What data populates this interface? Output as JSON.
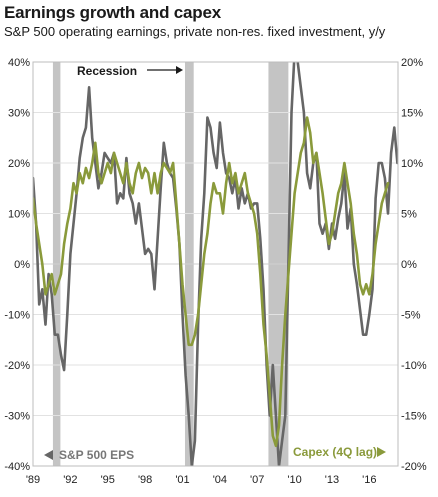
{
  "chart_data": {
    "type": "line",
    "title": "Earnings growth and capex",
    "subtitle": "S&P 500 operating earnings, private non-res. fixed investment, y/y",
    "x_ticks": [
      "'89",
      "'92",
      "'95",
      "'98",
      "'01",
      "'04",
      "'07",
      "'10",
      "'13",
      "'16"
    ],
    "x_range": [
      1989,
      2018.3
    ],
    "left_axis": {
      "range": [
        -40,
        40
      ],
      "ticks": [
        "-40%",
        "-30%",
        "-20%",
        "-10%",
        "0%",
        "10%",
        "20%",
        "30%",
        "40%"
      ]
    },
    "right_axis": {
      "range": [
        -20,
        20
      ],
      "ticks": [
        "-20%",
        "-15%",
        "-10%",
        "-5%",
        "0%",
        "5%",
        "10%",
        "15%",
        "20%"
      ]
    },
    "recessions": [
      [
        1990.6,
        1991.2
      ],
      [
        2001.2,
        2001.9
      ],
      [
        2007.9,
        2009.5
      ]
    ],
    "recession_label": "Recession",
    "grid": true,
    "series": [
      {
        "name": "S&P 500 EPS",
        "axis": "left",
        "color": "#666666",
        "points": [
          [
            1989.0,
            17
          ],
          [
            1989.25,
            8
          ],
          [
            1989.5,
            -8
          ],
          [
            1989.75,
            -5
          ],
          [
            1990.0,
            -12
          ],
          [
            1990.25,
            -2
          ],
          [
            1990.5,
            -6
          ],
          [
            1990.75,
            -14
          ],
          [
            1991.0,
            -14
          ],
          [
            1991.25,
            -18
          ],
          [
            1991.5,
            -21
          ],
          [
            1991.75,
            -10
          ],
          [
            1992.0,
            2
          ],
          [
            1992.25,
            8
          ],
          [
            1992.5,
            14
          ],
          [
            1992.75,
            21
          ],
          [
            1993.0,
            25
          ],
          [
            1993.25,
            27
          ],
          [
            1993.5,
            35
          ],
          [
            1993.75,
            25
          ],
          [
            1994.0,
            20
          ],
          [
            1994.25,
            15
          ],
          [
            1994.5,
            18
          ],
          [
            1994.75,
            22
          ],
          [
            1995.0,
            21
          ],
          [
            1995.25,
            20
          ],
          [
            1995.5,
            22
          ],
          [
            1995.75,
            12
          ],
          [
            1996.0,
            14
          ],
          [
            1996.25,
            13
          ],
          [
            1996.5,
            21
          ],
          [
            1996.75,
            14
          ],
          [
            1997.0,
            12
          ],
          [
            1997.25,
            8
          ],
          [
            1997.5,
            12
          ],
          [
            1997.75,
            7
          ],
          [
            1998.0,
            2
          ],
          [
            1998.25,
            3
          ],
          [
            1998.5,
            2
          ],
          [
            1998.75,
            -5
          ],
          [
            1999.0,
            5
          ],
          [
            1999.25,
            15
          ],
          [
            1999.5,
            24
          ],
          [
            1999.75,
            20
          ],
          [
            2000.0,
            18
          ],
          [
            2000.25,
            17
          ],
          [
            2000.5,
            11
          ],
          [
            2000.75,
            4
          ],
          [
            2001.0,
            -10
          ],
          [
            2001.25,
            -22
          ],
          [
            2001.5,
            -30
          ],
          [
            2001.75,
            -40
          ],
          [
            2002.0,
            -35
          ],
          [
            2002.25,
            -12
          ],
          [
            2002.5,
            5
          ],
          [
            2002.75,
            14
          ],
          [
            2003.0,
            29
          ],
          [
            2003.25,
            27
          ],
          [
            2003.5,
            22
          ],
          [
            2003.75,
            19
          ],
          [
            2004.0,
            28
          ],
          [
            2004.25,
            22
          ],
          [
            2004.5,
            18
          ],
          [
            2004.75,
            17
          ],
          [
            2005.0,
            14
          ],
          [
            2005.25,
            17
          ],
          [
            2005.5,
            11
          ],
          [
            2005.75,
            15
          ],
          [
            2006.0,
            12
          ],
          [
            2006.25,
            14
          ],
          [
            2006.5,
            11
          ],
          [
            2006.75,
            12
          ],
          [
            2007.0,
            12
          ],
          [
            2007.25,
            5
          ],
          [
            2007.5,
            -5
          ],
          [
            2007.75,
            -20
          ],
          [
            2008.0,
            -30
          ],
          [
            2008.25,
            -20
          ],
          [
            2008.5,
            -30
          ],
          [
            2008.75,
            -40
          ],
          [
            2009.0,
            -35
          ],
          [
            2009.25,
            -30
          ],
          [
            2009.5,
            0
          ],
          [
            2009.75,
            30
          ],
          [
            2010.0,
            42
          ],
          [
            2010.25,
            40
          ],
          [
            2010.5,
            35
          ],
          [
            2010.75,
            30
          ],
          [
            2011.0,
            18
          ],
          [
            2011.25,
            15
          ],
          [
            2011.5,
            20
          ],
          [
            2011.75,
            22
          ],
          [
            2012.0,
            8
          ],
          [
            2012.25,
            6
          ],
          [
            2012.5,
            8
          ],
          [
            2012.75,
            3
          ],
          [
            2013.0,
            8
          ],
          [
            2013.25,
            5
          ],
          [
            2013.5,
            9
          ],
          [
            2013.75,
            12
          ],
          [
            2014.0,
            18
          ],
          [
            2014.25,
            7
          ],
          [
            2014.5,
            11
          ],
          [
            2014.75,
            0
          ],
          [
            2015.0,
            -4
          ],
          [
            2015.25,
            -9
          ],
          [
            2015.5,
            -14
          ],
          [
            2015.75,
            -14
          ],
          [
            2016.0,
            -10
          ],
          [
            2016.25,
            -5
          ],
          [
            2016.5,
            13
          ],
          [
            2016.75,
            20
          ],
          [
            2017.0,
            20
          ],
          [
            2017.25,
            17
          ],
          [
            2017.5,
            10
          ],
          [
            2017.75,
            22
          ],
          [
            2018.0,
            27
          ],
          [
            2018.25,
            20
          ]
        ]
      },
      {
        "name": "Capex (4Q lag)",
        "axis": "right",
        "color": "#8a9a3b",
        "points": [
          [
            1989.0,
            6.5
          ],
          [
            1989.25,
            4
          ],
          [
            1989.5,
            2
          ],
          [
            1989.75,
            0
          ],
          [
            1990.0,
            -3
          ],
          [
            1990.25,
            -2
          ],
          [
            1990.5,
            -1
          ],
          [
            1990.75,
            -3
          ],
          [
            1991.0,
            -2
          ],
          [
            1991.25,
            -1
          ],
          [
            1991.5,
            2
          ],
          [
            1991.75,
            4
          ],
          [
            1992.0,
            5.5
          ],
          [
            1992.25,
            8
          ],
          [
            1992.5,
            7
          ],
          [
            1992.75,
            9
          ],
          [
            1993.0,
            8
          ],
          [
            1993.25,
            9.5
          ],
          [
            1993.5,
            8.5
          ],
          [
            1993.75,
            10
          ],
          [
            1994.0,
            12
          ],
          [
            1994.25,
            9
          ],
          [
            1994.5,
            8
          ],
          [
            1994.75,
            9
          ],
          [
            1995.0,
            10
          ],
          [
            1995.25,
            9
          ],
          [
            1995.5,
            11
          ],
          [
            1995.75,
            10
          ],
          [
            1996.0,
            9
          ],
          [
            1996.25,
            8
          ],
          [
            1996.5,
            10
          ],
          [
            1996.75,
            8
          ],
          [
            1997.0,
            7
          ],
          [
            1997.25,
            9
          ],
          [
            1997.5,
            10
          ],
          [
            1997.75,
            8.5
          ],
          [
            1998.0,
            9.5
          ],
          [
            1998.25,
            9
          ],
          [
            1998.5,
            7
          ],
          [
            1998.75,
            9
          ],
          [
            1999.0,
            7
          ],
          [
            1999.25,
            9
          ],
          [
            1999.5,
            10
          ],
          [
            1999.75,
            9.5
          ],
          [
            2000.0,
            9
          ],
          [
            2000.25,
            10
          ],
          [
            2000.5,
            6
          ],
          [
            2000.75,
            2
          ],
          [
            2001.0,
            -2
          ],
          [
            2001.25,
            -5
          ],
          [
            2001.5,
            -8
          ],
          [
            2001.75,
            -8
          ],
          [
            2002.0,
            -7
          ],
          [
            2002.25,
            -5
          ],
          [
            2002.5,
            -2
          ],
          [
            2002.75,
            1
          ],
          [
            2003.0,
            3
          ],
          [
            2003.25,
            6
          ],
          [
            2003.5,
            8
          ],
          [
            2003.75,
            7
          ],
          [
            2004.0,
            7
          ],
          [
            2004.25,
            5
          ],
          [
            2004.5,
            8
          ],
          [
            2004.75,
            10
          ],
          [
            2005.0,
            8
          ],
          [
            2005.25,
            9
          ],
          [
            2005.5,
            7
          ],
          [
            2005.75,
            8
          ],
          [
            2006.0,
            9
          ],
          [
            2006.25,
            7
          ],
          [
            2006.5,
            6
          ],
          [
            2006.75,
            5
          ],
          [
            2007.0,
            3
          ],
          [
            2007.25,
            -1
          ],
          [
            2007.5,
            -6
          ],
          [
            2007.75,
            -9
          ],
          [
            2008.0,
            -13
          ],
          [
            2008.25,
            -17
          ],
          [
            2008.5,
            -18
          ],
          [
            2008.75,
            -16
          ],
          [
            2009.0,
            -10
          ],
          [
            2009.25,
            -5
          ],
          [
            2009.5,
            -1
          ],
          [
            2009.75,
            3
          ],
          [
            2010.0,
            7
          ],
          [
            2010.25,
            9
          ],
          [
            2010.5,
            11
          ],
          [
            2010.75,
            12
          ],
          [
            2011.0,
            14.5
          ],
          [
            2011.25,
            13
          ],
          [
            2011.5,
            10
          ],
          [
            2011.75,
            11
          ],
          [
            2012.0,
            9
          ],
          [
            2012.25,
            7
          ],
          [
            2012.5,
            4.5
          ],
          [
            2012.75,
            2
          ],
          [
            2013.0,
            3
          ],
          [
            2013.25,
            5
          ],
          [
            2013.5,
            7
          ],
          [
            2013.75,
            8
          ],
          [
            2014.0,
            10
          ],
          [
            2014.25,
            8
          ],
          [
            2014.5,
            6
          ],
          [
            2014.75,
            3
          ],
          [
            2015.0,
            1
          ],
          [
            2015.25,
            -2
          ],
          [
            2015.5,
            -3
          ],
          [
            2015.75,
            -2
          ],
          [
            2016.0,
            -3
          ],
          [
            2016.25,
            -1
          ],
          [
            2016.5,
            2
          ],
          [
            2016.75,
            4
          ],
          [
            2017.0,
            6
          ],
          [
            2017.25,
            7
          ],
          [
            2017.5,
            8
          ]
        ]
      }
    ],
    "annotations": [
      {
        "text": "S&P 500 EPS",
        "arrow": "left"
      },
      {
        "text": "Capex (4Q lag)",
        "arrow": "right"
      }
    ]
  }
}
